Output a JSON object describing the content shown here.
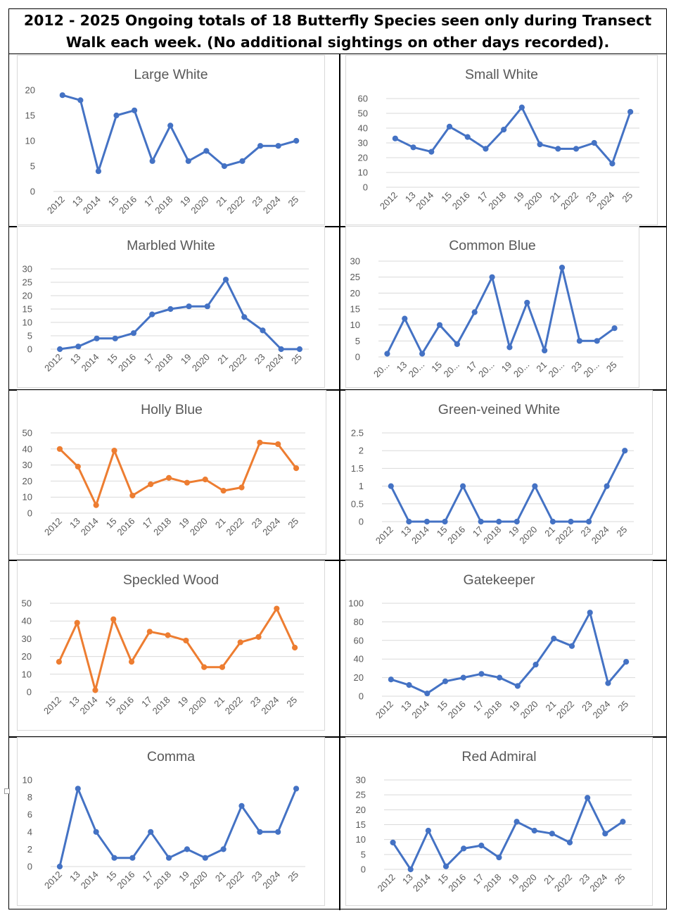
{
  "page": {
    "title": "2012 - 2025 Ongoing totals of 18 Butterfly Species seen only during Transect Walk each week. (No additional sightings on other days recorded)."
  },
  "colors": {
    "blue": "#4472c4",
    "orange": "#ed7d31",
    "grid": "#d9d9d9",
    "text": "#595959"
  },
  "chart_data": [
    {
      "type": "line",
      "title": "Large White",
      "color": "#4472c4",
      "categories": [
        "2012",
        "13",
        "2014",
        "15",
        "2016",
        "17",
        "2018",
        "19",
        "2020",
        "21",
        "2022",
        "23",
        "2024",
        "25"
      ],
      "values": [
        19,
        18,
        4,
        15,
        16,
        6,
        13,
        6,
        8,
        5,
        6,
        9,
        9,
        10
      ],
      "ylim": [
        0,
        20
      ],
      "yticks": [
        0,
        5,
        10,
        15,
        20
      ],
      "grid": false
    },
    {
      "type": "line",
      "title": "Small White",
      "color": "#4472c4",
      "categories": [
        "2012",
        "13",
        "2014",
        "15",
        "2016",
        "17",
        "2018",
        "19",
        "2020",
        "21",
        "2022",
        "23",
        "2024",
        "25"
      ],
      "values": [
        33,
        27,
        24,
        41,
        34,
        26,
        39,
        54,
        29,
        26,
        26,
        30,
        16,
        51
      ],
      "ylim": [
        0,
        60
      ],
      "yticks": [
        0,
        10,
        20,
        30,
        40,
        50,
        60
      ],
      "grid": true
    },
    {
      "type": "line",
      "title": "Marbled White",
      "color": "#4472c4",
      "categories": [
        "2012",
        "13",
        "2014",
        "15",
        "2016",
        "17",
        "2018",
        "19",
        "2020",
        "21",
        "2022",
        "23",
        "2024",
        "25"
      ],
      "values": [
        0,
        1,
        4,
        4,
        6,
        13,
        15,
        16,
        16,
        26,
        12,
        7,
        0,
        0
      ],
      "ylim": [
        0,
        30
      ],
      "yticks": [
        0,
        5,
        10,
        15,
        20,
        25,
        30
      ],
      "grid": true
    },
    {
      "type": "line",
      "title": "Common Blue",
      "color": "#4472c4",
      "categories": [
        "20...",
        "13",
        "20...",
        "15",
        "20...",
        "17",
        "20...",
        "19",
        "20...",
        "21",
        "20...",
        "23",
        "20...",
        "25"
      ],
      "values": [
        1,
        12,
        1,
        10,
        4,
        14,
        25,
        3,
        17,
        2,
        28,
        5,
        5,
        9
      ],
      "ylim": [
        0,
        30
      ],
      "yticks": [
        0,
        5,
        10,
        15,
        20,
        25,
        30
      ],
      "grid": true
    },
    {
      "type": "line",
      "title": "Holly Blue",
      "color": "#ed7d31",
      "categories": [
        "2012",
        "13",
        "2014",
        "15",
        "2016",
        "17",
        "2018",
        "19",
        "2020",
        "21",
        "2022",
        "23",
        "2024",
        "25"
      ],
      "values": [
        40,
        29,
        5,
        39,
        11,
        18,
        22,
        19,
        21,
        14,
        16,
        44,
        43,
        28
      ],
      "ylim": [
        0,
        50
      ],
      "yticks": [
        0,
        10,
        20,
        30,
        40,
        50
      ],
      "grid": true
    },
    {
      "type": "line",
      "title": "Green-veined White",
      "color": "#4472c4",
      "categories": [
        "2012",
        "13",
        "2014",
        "15",
        "2016",
        "17",
        "2018",
        "19",
        "2020",
        "21",
        "2022",
        "23",
        "2024",
        "25"
      ],
      "values": [
        1,
        0,
        0,
        0,
        1,
        0,
        0,
        0,
        1,
        0,
        0,
        0,
        1,
        2
      ],
      "ylim": [
        0,
        2.5
      ],
      "yticks": [
        0,
        0.5,
        1,
        1.5,
        2,
        2.5
      ],
      "grid": true
    },
    {
      "type": "line",
      "title": "Speckled Wood",
      "color": "#ed7d31",
      "categories": [
        "2012",
        "13",
        "2014",
        "15",
        "2016",
        "17",
        "2018",
        "19",
        "2020",
        "21",
        "2022",
        "23",
        "2024",
        "25"
      ],
      "values": [
        17,
        39,
        1,
        41,
        17,
        34,
        32,
        29,
        14,
        14,
        28,
        31,
        47,
        25
      ],
      "ylim": [
        0,
        50
      ],
      "yticks": [
        0,
        10,
        20,
        30,
        40,
        50
      ],
      "grid": true
    },
    {
      "type": "line",
      "title": "Gatekeeper",
      "color": "#4472c4",
      "categories": [
        "2012",
        "13",
        "2014",
        "15",
        "2016",
        "17",
        "2018",
        "19",
        "2020",
        "21",
        "2022",
        "23",
        "2024",
        "25"
      ],
      "values": [
        18,
        12,
        3,
        16,
        20,
        24,
        20,
        11,
        34,
        62,
        54,
        90,
        14,
        37
      ],
      "ylim": [
        0,
        100
      ],
      "yticks": [
        0,
        20,
        40,
        60,
        80,
        100
      ],
      "grid": true
    },
    {
      "type": "line",
      "title": "Comma",
      "color": "#4472c4",
      "categories": [
        "2012",
        "13",
        "2014",
        "15",
        "2016",
        "17",
        "2018",
        "19",
        "2020",
        "21",
        "2022",
        "23",
        "2024",
        "25"
      ],
      "values": [
        0,
        9,
        4,
        1,
        1,
        4,
        1,
        2,
        1,
        2,
        7,
        4,
        4,
        9
      ],
      "ylim": [
        0,
        10
      ],
      "yticks": [
        0,
        2,
        4,
        6,
        8,
        10
      ],
      "grid": false
    },
    {
      "type": "line",
      "title": "Red Admiral",
      "color": "#4472c4",
      "categories": [
        "2012",
        "13",
        "2014",
        "15",
        "2016",
        "17",
        "2018",
        "19",
        "2020",
        "21",
        "2022",
        "23",
        "2024",
        "25"
      ],
      "values": [
        9,
        0,
        13,
        1,
        7,
        8,
        4,
        16,
        13,
        12,
        9,
        24,
        12,
        16
      ],
      "ylim": [
        0,
        30
      ],
      "yticks": [
        0,
        5,
        10,
        15,
        20,
        25,
        30
      ],
      "grid": true
    }
  ]
}
